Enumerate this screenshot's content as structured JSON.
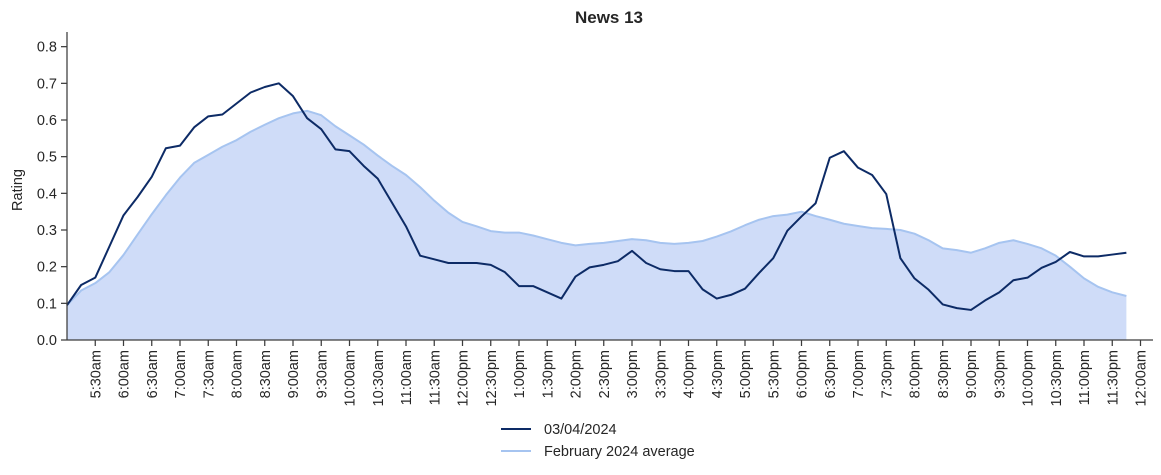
{
  "chart_data": {
    "type": "line",
    "title": "News 13",
    "xlabel": "",
    "ylabel": "Rating",
    "ylim": [
      0,
      0.84
    ],
    "yticks": [
      "0.0",
      "0.1",
      "0.2",
      "0.3",
      "0.4",
      "0.5",
      "0.6",
      "0.7",
      "0.8"
    ],
    "xticks": [
      "5:30am",
      "6:00am",
      "6:30am",
      "7:00am",
      "7:30am",
      "8:00am",
      "8:30am",
      "9:00am",
      "9:30am",
      "10:00am",
      "10:30am",
      "11:00am",
      "11:30am",
      "12:00pm",
      "12:30pm",
      "1:00pm",
      "1:30pm",
      "2:00pm",
      "2:30pm",
      "3:00pm",
      "3:30pm",
      "4:00pm",
      "4:30pm",
      "5:00pm",
      "5:30pm",
      "6:00pm",
      "6:30pm",
      "7:00pm",
      "7:30pm",
      "8:00pm",
      "8:30pm",
      "9:00pm",
      "9:30pm",
      "10:00pm",
      "10:30pm",
      "11:00pm",
      "11:30pm",
      "12:00am"
    ],
    "x_start": "5:00am",
    "x_step_minutes": 15,
    "grid": false,
    "legend_position": "bottom-center",
    "series": [
      {
        "name": "03/04/2024",
        "color": "#0d2b66",
        "style": "line",
        "values": [
          0.095,
          0.15,
          0.17,
          0.255,
          0.34,
          0.39,
          0.445,
          0.523,
          0.53,
          0.58,
          0.61,
          0.615,
          0.645,
          0.675,
          0.69,
          0.7,
          0.665,
          0.605,
          0.575,
          0.52,
          0.515,
          0.475,
          0.44,
          0.375,
          0.31,
          0.23,
          0.22,
          0.21,
          0.21,
          0.21,
          0.205,
          0.185,
          0.147,
          0.147,
          0.13,
          0.113,
          0.173,
          0.198,
          0.205,
          0.215,
          0.243,
          0.21,
          0.193,
          0.188,
          0.188,
          0.138,
          0.113,
          0.123,
          0.14,
          0.183,
          0.223,
          0.298,
          0.337,
          0.373,
          0.497,
          0.515,
          0.47,
          0.45,
          0.398,
          0.223,
          0.168,
          0.137,
          0.097,
          0.087,
          0.082,
          0.108,
          0.13,
          0.163,
          0.17,
          0.197,
          0.213,
          0.24,
          0.228,
          0.228,
          0.233,
          0.238
        ]
      },
      {
        "name": "February 2024 average",
        "color": "#a6c4f0",
        "fill": "#cfdcf8",
        "style": "area",
        "values": [
          0.095,
          0.135,
          0.155,
          0.185,
          0.232,
          0.288,
          0.343,
          0.395,
          0.443,
          0.483,
          0.505,
          0.527,
          0.545,
          0.568,
          0.587,
          0.605,
          0.618,
          0.625,
          0.613,
          0.583,
          0.558,
          0.533,
          0.503,
          0.475,
          0.45,
          0.417,
          0.38,
          0.347,
          0.322,
          0.31,
          0.297,
          0.293,
          0.293,
          0.285,
          0.275,
          0.265,
          0.258,
          0.262,
          0.265,
          0.27,
          0.275,
          0.272,
          0.265,
          0.262,
          0.265,
          0.27,
          0.282,
          0.296,
          0.313,
          0.328,
          0.338,
          0.342,
          0.35,
          0.338,
          0.328,
          0.317,
          0.311,
          0.305,
          0.303,
          0.3,
          0.29,
          0.272,
          0.25,
          0.245,
          0.238,
          0.25,
          0.265,
          0.272,
          0.262,
          0.25,
          0.23,
          0.2,
          0.168,
          0.145,
          0.13,
          0.12
        ]
      }
    ]
  }
}
